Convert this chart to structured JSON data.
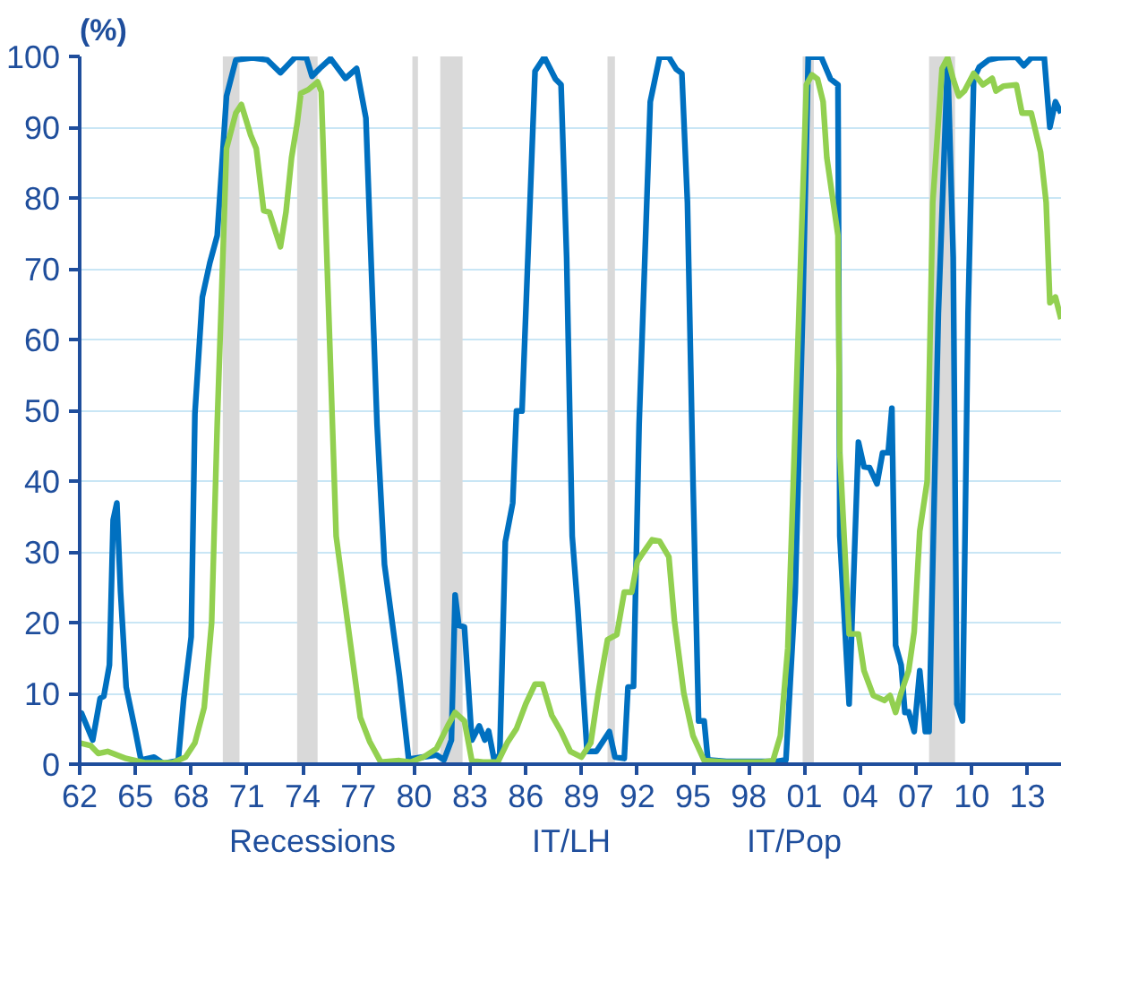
{
  "chart_data": {
    "type": "line",
    "ylabel": "(%)",
    "xlim": [
      1962,
      2014.8
    ],
    "ylim": [
      0,
      100
    ],
    "xticks": [
      {
        "value": 1962,
        "label": "62"
      },
      {
        "value": 1965,
        "label": "65"
      },
      {
        "value": 1968,
        "label": "68"
      },
      {
        "value": 1971,
        "label": "71"
      },
      {
        "value": 1974,
        "label": "74"
      },
      {
        "value": 1977,
        "label": "77"
      },
      {
        "value": 1980,
        "label": "80"
      },
      {
        "value": 1983,
        "label": "83"
      },
      {
        "value": 1986,
        "label": "86"
      },
      {
        "value": 1989,
        "label": "89"
      },
      {
        "value": 1992,
        "label": "92"
      },
      {
        "value": 1995,
        "label": "95"
      },
      {
        "value": 1998,
        "label": "98"
      },
      {
        "value": 2001,
        "label": "01"
      },
      {
        "value": 2004,
        "label": "04"
      },
      {
        "value": 2007,
        "label": "07"
      },
      {
        "value": 2010,
        "label": "10"
      },
      {
        "value": 2013,
        "label": "13"
      }
    ],
    "yticks": [
      0,
      10,
      20,
      30,
      40,
      50,
      60,
      70,
      80,
      90,
      100
    ],
    "grid": "y",
    "legend": "bottom",
    "line_style": "solid",
    "marker": "none",
    "bands": [
      {
        "axis": "x",
        "from": 1969.7,
        "to": 1970.6,
        "label": "Recessions",
        "color": "#d9d9d9"
      },
      {
        "axis": "x",
        "from": 1973.7,
        "to": 1974.8,
        "color": "#d9d9d9"
      },
      {
        "axis": "x",
        "from": 1979.9,
        "to": 1980.2,
        "color": "#d9d9d9"
      },
      {
        "axis": "x",
        "from": 1981.4,
        "to": 1982.6,
        "color": "#d9d9d9"
      },
      {
        "axis": "x",
        "from": 1990.4,
        "to": 1990.8,
        "color": "#d9d9d9"
      },
      {
        "axis": "x",
        "from": 2000.9,
        "to": 2001.5,
        "color": "#d9d9d9"
      },
      {
        "axis": "x",
        "from": 2007.7,
        "to": 2009.1,
        "color": "#d9d9d9"
      }
    ],
    "series": [
      {
        "name": "IT/LH",
        "color": "#0070c0",
        "x": [
          1962.0,
          1962.1,
          1962.7,
          1963.1,
          1963.3,
          1963.6,
          1963.8,
          1964.0,
          1964.2,
          1964.5,
          1965.0,
          1965.3,
          1966.0,
          1966.5,
          1967.3,
          1967.6,
          1968.0,
          1968.2,
          1968.6,
          1969.0,
          1969.4,
          1969.9,
          1970.4,
          1971.3,
          1972.1,
          1972.8,
          1973.6,
          1974.2,
          1974.5,
          1975.0,
          1975.5,
          1976.3,
          1976.9,
          1977.4,
          1978.0,
          1978.4,
          1979.2,
          1979.7,
          1981.2,
          1981.6,
          1982.0,
          1982.2,
          1982.4,
          1982.7,
          1983.1,
          1983.5,
          1983.8,
          1984.0,
          1984.3,
          1984.6,
          1984.9,
          1985.3,
          1985.5,
          1985.8,
          1986.5,
          1987.0,
          1987.6,
          1987.9,
          1988.2,
          1988.5,
          1988.8,
          1989.3,
          1989.8,
          1990.5,
          1990.8,
          1991.3,
          1991.5,
          1991.8,
          1992.1,
          1992.7,
          1993.2,
          1993.7,
          1994.1,
          1994.4,
          1994.7,
          1995.0,
          1995.3,
          1995.6,
          1995.8,
          1996.8,
          1998.7,
          1999.5,
          2000.0,
          2000.5,
          2000.9,
          2001.2,
          2001.9,
          2002.4,
          2002.8,
          2002.9,
          2003.4,
          2003.9,
          2004.2,
          2004.5,
          2004.9,
          2005.2,
          2005.5,
          2005.7,
          2005.9,
          2006.2,
          2006.4,
          2006.6,
          2006.9,
          2007.2,
          2007.5,
          2007.7,
          2008.2,
          2008.7,
          2009.0,
          2009.2,
          2009.5,
          2009.8,
          2010.1,
          2010.4,
          2010.9,
          2011.4,
          2012.4,
          2012.8,
          2013.2,
          2013.9,
          2014.2,
          2014.5,
          2014.8
        ],
        "values": [
          6.9,
          7.2,
          3.4,
          9.3,
          9.6,
          14,
          34.5,
          36.9,
          24.3,
          10.9,
          4.6,
          0.6,
          1.0,
          0.1,
          0.5,
          9.3,
          18,
          49.5,
          66,
          70.8,
          74.7,
          94.4,
          99.5,
          99.8,
          99.5,
          97.7,
          99.9,
          99.8,
          97.2,
          98.5,
          99.7,
          96.9,
          98.3,
          91.3,
          48,
          28.2,
          12.5,
          0.7,
          1.3,
          0.6,
          3.4,
          23.9,
          19.6,
          19.4,
          3.4,
          5.4,
          3.4,
          4.7,
          0.6,
          1.3,
          31.4,
          36.9,
          49.9,
          49.9,
          97.9,
          99.9,
          96.8,
          96,
          71.6,
          32.2,
          22,
          1.8,
          1.8,
          4.6,
          1.0,
          0.8,
          10.9,
          11,
          48,
          93.6,
          99.9,
          99.9,
          98.2,
          97.6,
          79.4,
          40,
          6.1,
          6.1,
          0.6,
          0.4,
          0.4,
          0.4,
          0.6,
          24.3,
          63.7,
          99.9,
          99.9,
          96.8,
          96,
          32.2,
          8.5,
          45.5,
          42,
          41.9,
          39.6,
          44,
          44,
          50.3,
          16.8,
          14,
          7.3,
          7.4,
          4.6,
          13.2,
          4.6,
          4.6,
          63.7,
          99.5,
          71.6,
          8.5,
          6.1,
          63.7,
          96.8,
          98.5,
          99.5,
          99.8,
          99.9,
          98.7,
          99.8,
          99.8,
          90,
          93.6,
          92
        ]
      },
      {
        "name": "IT/Pop",
        "color": "#92d050",
        "x": [
          1962.0,
          1962.6,
          1963.0,
          1963.5,
          1964.5,
          1965.5,
          1967.0,
          1967.7,
          1968.2,
          1968.7,
          1969.1,
          1969.4,
          1969.9,
          1970.4,
          1970.7,
          1971.2,
          1971.5,
          1971.9,
          1972.2,
          1972.8,
          1973.1,
          1973.4,
          1973.7,
          1973.9,
          1974.3,
          1974.8,
          1975.0,
          1975.3,
          1975.8,
          1976.4,
          1977.1,
          1977.6,
          1978.2,
          1979.2,
          1979.8,
          1980.5,
          1981.2,
          1981.8,
          1982.2,
          1982.7,
          1983.1,
          1983.7,
          1984.5,
          1985.0,
          1985.5,
          1986.0,
          1986.5,
          1986.9,
          1987.4,
          1987.9,
          1988.4,
          1989.0,
          1989.5,
          1989.9,
          1990.4,
          1990.9,
          1991.3,
          1991.7,
          1992.0,
          1992.3,
          1992.8,
          1993.2,
          1993.7,
          1994.0,
          1994.5,
          1995.0,
          1995.6,
          1996.8,
          1998.7,
          1999.3,
          1999.7,
          2000.1,
          2000.6,
          2001.1,
          2001.4,
          2001.7,
          2002.0,
          2002.2,
          2002.8,
          2002.9,
          2003.4,
          2003.9,
          2004.2,
          2004.7,
          2005.3,
          2005.6,
          2005.9,
          2006.2,
          2006.6,
          2006.9,
          2007.2,
          2007.6,
          2007.9,
          2008.4,
          2008.7,
          2009.0,
          2009.3,
          2009.6,
          2010.1,
          2010.6,
          2011.1,
          2011.3,
          2011.7,
          2012.4,
          2012.7,
          2013.2,
          2013.7,
          2014.0,
          2014.2,
          2014.5,
          2014.8
        ],
        "values": [
          3,
          2.6,
          1.5,
          1.8,
          0.8,
          0.2,
          0.2,
          1.0,
          3,
          8,
          20,
          48,
          87,
          92,
          93.2,
          88.9,
          87,
          78.2,
          78,
          73.1,
          78,
          85.7,
          90.5,
          94.8,
          95.3,
          96.4,
          95,
          71.6,
          32.2,
          20.3,
          6.6,
          3.2,
          0.3,
          0.5,
          0.3,
          1,
          2.2,
          5.4,
          7.3,
          6.1,
          0.5,
          0.3,
          0.3,
          3,
          5,
          8.5,
          11.3,
          11.3,
          6.9,
          4.6,
          1.8,
          1,
          3,
          10.1,
          17.6,
          18.3,
          24.3,
          24.3,
          28.6,
          29.8,
          31.7,
          31.5,
          29.3,
          20.3,
          10.1,
          4,
          0.5,
          0.3,
          0.3,
          0.5,
          4,
          16.4,
          55.8,
          96,
          97.4,
          96.8,
          93.6,
          85.7,
          74.7,
          44,
          18.4,
          18.4,
          13.2,
          9.7,
          9,
          9.7,
          7.3,
          10.1,
          13.2,
          18.7,
          32.9,
          40,
          79.4,
          98.3,
          99.8,
          96.8,
          94.4,
          95.1,
          97.6,
          96,
          96.9,
          95.1,
          95.8,
          96,
          92,
          92,
          86.5,
          79.4,
          65.2,
          66,
          62.9
        ]
      }
    ]
  }
}
